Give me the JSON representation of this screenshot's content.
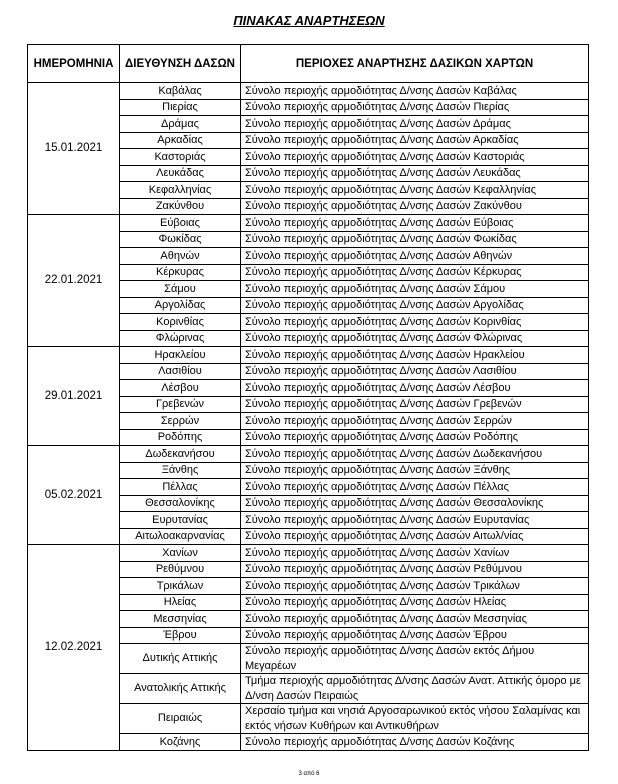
{
  "header": {
    "title": "ΠΙΝΑΚΑΣ ΑΝΑΡΤΗΣΕΩΝ"
  },
  "table": {
    "columns": [
      "ΗΜΕΡΟΜΗΝΙΑ",
      "ΔΙΕΥΘΥΝΣΗ ΔΑΣΩΝ",
      "ΠΕΡΙΟΧΕΣ ΑΝΑΡΤΗΣΗΣ ΔΑΣΙΚΩΝ ΧΑΡΤΩΝ"
    ],
    "groups": [
      {
        "date": "15.01.2021",
        "rows": [
          {
            "directorate": "Καβάλας",
            "area": "Σύνολο περιοχής αρμοδιότητας Δ/νσης Δασών Καβάλας"
          },
          {
            "directorate": "Πιερίας",
            "area": "Σύνολο περιοχής αρμοδιότητας Δ/νσης Δασών Πιερίας"
          },
          {
            "directorate": "Δράμας",
            "area": "Σύνολο περιοχής αρμοδιότητας Δ/νσης Δασών Δράμας"
          },
          {
            "directorate": "Αρκαδίας",
            "area": "Σύνολο περιοχής αρμοδιότητας Δ/νσης Δασών Αρκαδίας"
          },
          {
            "directorate": "Καστοριάς",
            "area": "Σύνολο περιοχής αρμοδιότητας Δ/νσης Δασών Καστοριάς"
          },
          {
            "directorate": "Λευκάδας",
            "area": "Σύνολο περιοχής αρμοδιότητας Δ/νσης Δασών Λευκάδας"
          },
          {
            "directorate": "Κεφαλληνίας",
            "area": "Σύνολο περιοχής αρμοδιότητας Δ/νσης Δασών Κεφαλληνίας"
          },
          {
            "directorate": "Ζακύνθου",
            "area": "Σύνολο περιοχής αρμοδιότητας Δ/νσης Δασών Ζακύνθου"
          }
        ]
      },
      {
        "date": "22.01.2021",
        "rows": [
          {
            "directorate": "Εύβοιας",
            "area": "Σύνολο περιοχής αρμοδιότητας Δ/νσης Δασών Εύβοιας"
          },
          {
            "directorate": "Φωκίδας",
            "area": "Σύνολο περιοχής αρμοδιότητας Δ/νσης Δασών Φωκίδας"
          },
          {
            "directorate": "Αθηνών",
            "area": "Σύνολο περιοχής αρμοδιότητας Δ/νσης Δασών Αθηνών"
          },
          {
            "directorate": "Κέρκυρας",
            "area": "Σύνολο περιοχής αρμοδιότητας Δ/νσης Δασών Κέρκυρας"
          },
          {
            "directorate": "Σάμου",
            "area": "Σύνολο περιοχής αρμοδιότητας Δ/νσης Δασών Σάμου"
          },
          {
            "directorate": "Αργολίδας",
            "area": "Σύνολο περιοχής αρμοδιότητας Δ/νσης Δασών Αργολίδας"
          },
          {
            "directorate": "Κορινθίας",
            "area": "Σύνολο περιοχής αρμοδιότητας Δ/νσης Δασών Κορινθίας"
          },
          {
            "directorate": "Φλώρινας",
            "area": "Σύνολο περιοχής αρμοδιότητας Δ/νσης Δασών Φλώρινας"
          }
        ]
      },
      {
        "date": "29.01.2021",
        "rows": [
          {
            "directorate": "Ηρακλείου",
            "area": "Σύνολο περιοχής αρμοδιότητας Δ/νσης Δασών Ηρακλείου"
          },
          {
            "directorate": "Λασιθίου",
            "area": "Σύνολο περιοχής αρμοδιότητας Δ/νσης Δασών Λασιθίου"
          },
          {
            "directorate": "Λέσβου",
            "area": "Σύνολο περιοχής αρμοδιότητας Δ/νσης Δασών Λέσβου"
          },
          {
            "directorate": "Γρεβενών",
            "area": "Σύνολο περιοχής αρμοδιότητας Δ/νσης Δασών Γρεβενών"
          },
          {
            "directorate": "Σερρών",
            "area": "Σύνολο περιοχής αρμοδιότητας Δ/νσης Δασών Σερρών"
          },
          {
            "directorate": "Ροδόπης",
            "area": "Σύνολο περιοχής αρμοδιότητας Δ/νσης Δασών Ροδόπης"
          }
        ]
      },
      {
        "date": "05.02.2021",
        "rows": [
          {
            "directorate": "Δωδεκανήσου",
            "area": "Σύνολο περιοχής αρμοδιότητας Δ/νσης Δασών Δωδεκανήσου"
          },
          {
            "directorate": "Ξάνθης",
            "area": "Σύνολο περιοχής αρμοδιότητας Δ/νσης Δασών Ξάνθης"
          },
          {
            "directorate": "Πέλλας",
            "area": "Σύνολο περιοχής αρμοδιότητας Δ/νσης Δασών Πέλλας"
          },
          {
            "directorate": "Θεσσαλονίκης",
            "area": "Σύνολο περιοχής αρμοδιότητας Δ/νσης Δασών Θεσσαλονίκης"
          },
          {
            "directorate": "Ευρυτανίας",
            "area": "Σύνολο περιοχής αρμοδιότητας Δ/νσης Δασών Ευρυτανίας"
          },
          {
            "directorate": "Αιτωλοακαρνανίας",
            "area": "Σύνολο περιοχής αρμοδιότητας Δ/νσης Δασών Αιτωλ/νίας"
          }
        ]
      },
      {
        "date": "12.02.2021",
        "rows": [
          {
            "directorate": "Χανίων",
            "area": "Σύνολο περιοχής αρμοδιότητας Δ/νσης Δασών Χανίων"
          },
          {
            "directorate": "Ρεθύμνου",
            "area": "Σύνολο περιοχής αρμοδιότητας Δ/νσης Δασών Ρεθύμνου"
          },
          {
            "directorate": "Τρικάλων",
            "area": "Σύνολο περιοχής αρμοδιότητας Δ/νσης Δασών Τρικάλων"
          },
          {
            "directorate": "Ηλείας",
            "area": "Σύνολο περιοχής αρμοδιότητας Δ/νσης Δασών Ηλείας"
          },
          {
            "directorate": "Μεσσηνίας",
            "area": "Σύνολο περιοχής αρμοδιότητας Δ/νσης Δασών Μεσσηνίας"
          },
          {
            "directorate": "Έβρου",
            "area": "Σύνολο περιοχής αρμοδιότητας Δ/νσης Δασών Έβρου"
          },
          {
            "directorate": "Δυτικής Αττικής",
            "area": "Σύνολο περιοχής αρμοδιότητας Δ/νσης Δασών εκτός Δήμου Μεγαρέων"
          },
          {
            "directorate": "Ανατολικής Αττικής",
            "area": "Τμήμα περιοχής αρμοδιότητας Δ/νσης Δασών Ανατ. Αττικής όμορο με Δ/νση Δασών Πειραιώς"
          },
          {
            "directorate": "Πειραιώς",
            "area": "Χερσαίο τμήμα και νησιά Αργοσαρωνικού εκτός νήσου Σαλαμίνας και εκτός νήσων Κυθήρων και Αντικυθήρων"
          },
          {
            "directorate": "Κοζάνης",
            "area": "Σύνολο περιοχής αρμοδιότητας Δ/νσης Δασών Κοζάνης"
          }
        ]
      }
    ]
  },
  "footer": {
    "page": "3 από 6"
  }
}
